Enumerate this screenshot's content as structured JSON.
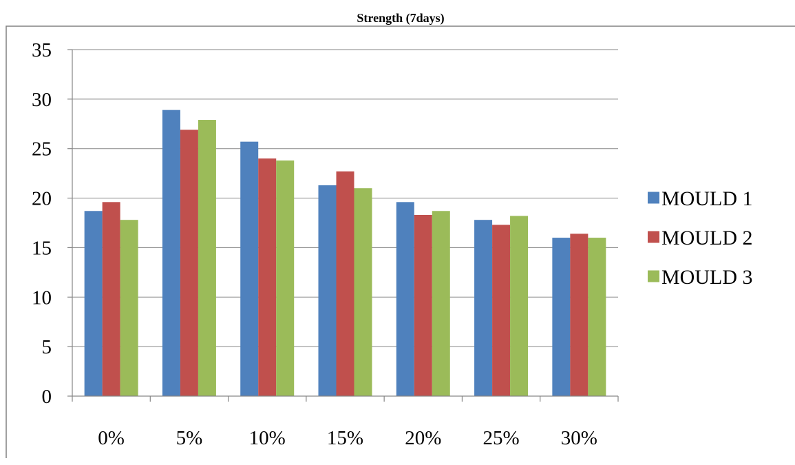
{
  "chart_data": {
    "type": "bar",
    "title": "Strength (7days)",
    "xlabel": "",
    "ylabel": "",
    "categories": [
      "0%",
      "5%",
      "10%",
      "15%",
      "20%",
      "25%",
      "30%"
    ],
    "ylim": [
      0,
      35
    ],
    "yticks": [
      0,
      5,
      10,
      15,
      20,
      25,
      30,
      35
    ],
    "grid": true,
    "legend_position": "right",
    "series": [
      {
        "name": "MOULD 1",
        "color": "#4F81BD",
        "values": [
          18.7,
          28.9,
          25.7,
          21.3,
          19.6,
          17.8,
          16.0
        ]
      },
      {
        "name": "MOULD 2",
        "color": "#C0504D",
        "values": [
          19.6,
          26.9,
          24.0,
          22.7,
          18.3,
          17.3,
          16.4
        ]
      },
      {
        "name": "MOULD 3",
        "color": "#9BBB59",
        "values": [
          17.8,
          27.9,
          23.8,
          21.0,
          18.7,
          18.2,
          16.0
        ]
      }
    ]
  }
}
